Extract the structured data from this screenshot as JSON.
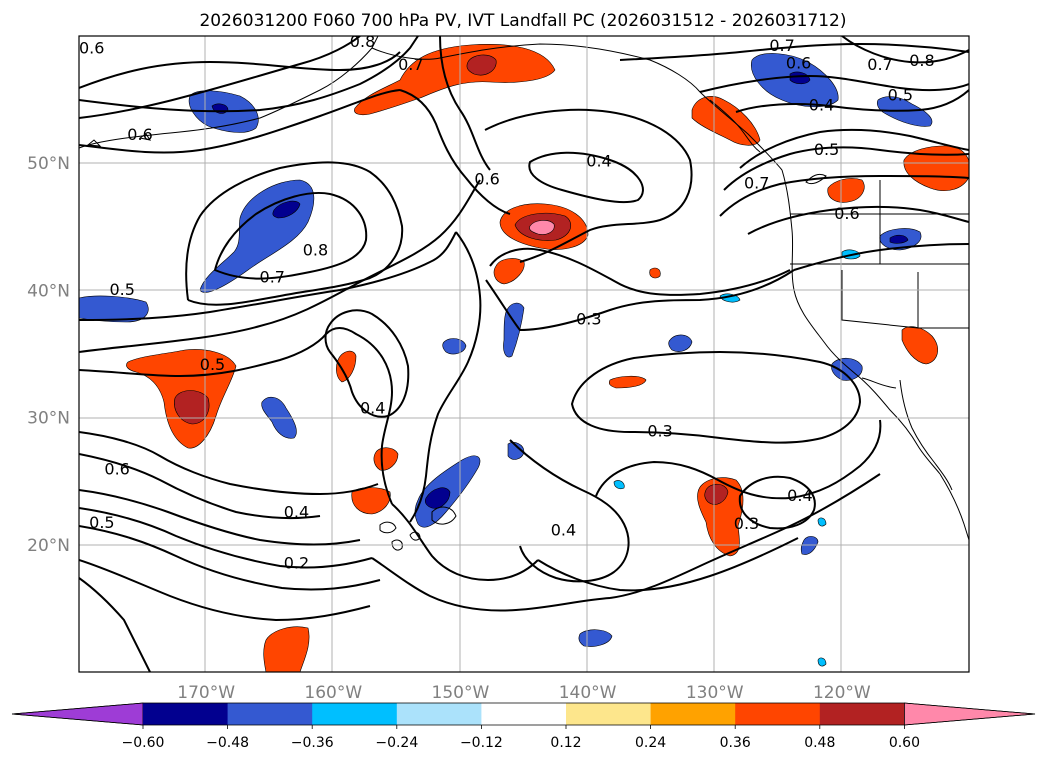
{
  "title": "2026031200 F060 700 hPa PV, IVT Landfall PC (2026031512 - 2026031712)",
  "map": {
    "lat_labels": [
      {
        "lat": 50,
        "text": "50°N"
      },
      {
        "lat": 40,
        "text": "40°N"
      },
      {
        "lat": 30,
        "text": "30°N"
      },
      {
        "lat": 20,
        "text": "20°N"
      }
    ],
    "lon_labels": [
      {
        "lon": -170,
        "text": "170°W"
      },
      {
        "lon": -160,
        "text": "160°W"
      },
      {
        "lon": -150,
        "text": "150°W"
      },
      {
        "lon": -140,
        "text": "140°W"
      },
      {
        "lon": -130,
        "text": "130°W"
      },
      {
        "lon": -120,
        "text": "120°W"
      }
    ],
    "extent": {
      "lon_min": -180,
      "lon_max": -110,
      "lat_min": 10,
      "lat_max": 60
    },
    "contour_labels": [
      {
        "text": "0.6",
        "lon": -179.0,
        "lat": 59.1
      },
      {
        "text": "0.8",
        "lon": -157.7,
        "lat": 59.6
      },
      {
        "text": "0.7",
        "lon": -153.9,
        "lat": 57.8
      },
      {
        "text": "0.7",
        "lon": -124.7,
        "lat": 59.3
      },
      {
        "text": "0.6",
        "lon": -123.4,
        "lat": 57.9
      },
      {
        "text": "0.7",
        "lon": -117.0,
        "lat": 57.8
      },
      {
        "text": "0.8",
        "lon": -113.7,
        "lat": 58.1
      },
      {
        "text": "0.5",
        "lon": -115.4,
        "lat": 55.4
      },
      {
        "text": "0.4",
        "lon": -121.6,
        "lat": 54.6
      },
      {
        "text": "0.5",
        "lon": -121.2,
        "lat": 51.1
      },
      {
        "text": "0.6",
        "lon": -119.6,
        "lat": 46.1
      },
      {
        "text": "0.7",
        "lon": -126.7,
        "lat": 48.5
      },
      {
        "text": "0.4",
        "lon": -139.1,
        "lat": 50.2
      },
      {
        "text": "0.6",
        "lon": -175.2,
        "lat": 52.3
      },
      {
        "text": "0.6",
        "lon": -147.9,
        "lat": 48.8
      },
      {
        "text": "0.8",
        "lon": -161.4,
        "lat": 43.2
      },
      {
        "text": "0.7",
        "lon": -164.8,
        "lat": 41.1
      },
      {
        "text": "0.5",
        "lon": -176.6,
        "lat": 40.1
      },
      {
        "text": "0.5",
        "lon": -169.5,
        "lat": 34.2
      },
      {
        "text": "0.4",
        "lon": -156.9,
        "lat": 30.8
      },
      {
        "text": "0.3",
        "lon": -139.9,
        "lat": 37.8
      },
      {
        "text": "0.3",
        "lon": -134.3,
        "lat": 29.0
      },
      {
        "text": "0.6",
        "lon": -177.0,
        "lat": 26.0
      },
      {
        "text": "0.5",
        "lon": -178.2,
        "lat": 21.8
      },
      {
        "text": "0.4",
        "lon": -162.9,
        "lat": 22.6
      },
      {
        "text": "0.2",
        "lon": -162.9,
        "lat": 18.6
      },
      {
        "text": "0.4",
        "lon": -141.9,
        "lat": 21.2
      },
      {
        "text": "0.3",
        "lon": -127.5,
        "lat": 21.7
      },
      {
        "text": "0.4",
        "lon": -123.3,
        "lat": 23.9
      }
    ]
  },
  "colorbar": {
    "levels": [
      "−0.60",
      "−0.48",
      "−0.36",
      "−0.24",
      "−0.12",
      "0.12",
      "0.24",
      "0.36",
      "0.48",
      "0.60"
    ],
    "colors": [
      "#9e3cd6",
      "#02008f",
      "#3459d1",
      "#00bfff",
      "#abe2fb",
      "#ffffff",
      "#fde68c",
      "#ffa200",
      "#ff4500",
      "#b22222",
      "#ff88aa"
    ]
  }
}
